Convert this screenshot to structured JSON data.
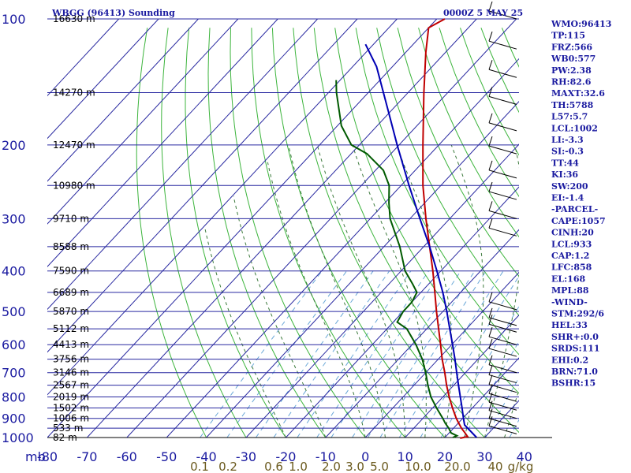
{
  "header": {
    "station": "WBGG (96413) Sounding",
    "time": "0000Z  5 MAY 25"
  },
  "chart_data": {
    "type": "skew-t log-p sounding",
    "x_axis_unit": "mb",
    "x_ticks": [
      "-80",
      "-70",
      "-60",
      "-50",
      "-40",
      "-30",
      "-20",
      "-10",
      "0",
      "10",
      "20",
      "30",
      "40"
    ],
    "y_ticks": [
      "100",
      "200",
      "300",
      "400",
      "500",
      "600",
      "700",
      "800",
      "900",
      "1000"
    ],
    "height_labels": [
      {
        "p": 100,
        "text": "16630 m"
      },
      {
        "p": 150,
        "text": "14270 m"
      },
      {
        "p": 200,
        "text": "12470 m"
      },
      {
        "p": 250,
        "text": "10980 m"
      },
      {
        "p": 300,
        "text": "9710 m"
      },
      {
        "p": 350,
        "text": "8588 m"
      },
      {
        "p": 400,
        "text": "7590 m"
      },
      {
        "p": 450,
        "text": "6689 m"
      },
      {
        "p": 500,
        "text": "5870 m"
      },
      {
        "p": 550,
        "text": "5112 m"
      },
      {
        "p": 600,
        "text": "4413 m"
      },
      {
        "p": 650,
        "text": "3756 m"
      },
      {
        "p": 700,
        "text": "3146 m"
      },
      {
        "p": 750,
        "text": "2567 m"
      },
      {
        "p": 800,
        "text": "2019 m"
      },
      {
        "p": 850,
        "text": "1502 m"
      },
      {
        "p": 900,
        "text": "1006 m"
      },
      {
        "p": 950,
        "text": "533 m"
      },
      {
        "p": 1000,
        "text": "82 m"
      }
    ],
    "mixing_ratio_labels": [
      "0.1",
      "0.2",
      "0.6",
      "1.0",
      "2.0",
      "3.0",
      "5.0",
      "10.0",
      "20.0",
      "40",
      "g/kg"
    ],
    "series": [
      {
        "name": "temperature",
        "color": "#c00000",
        "points": [
          {
            "p": 1004,
            "t": 24.0
          },
          {
            "p": 995,
            "t": 25.5
          },
          {
            "p": 975,
            "t": 24.0
          },
          {
            "p": 950,
            "t": 22.0
          },
          {
            "p": 925,
            "t": 20.2
          },
          {
            "p": 900,
            "t": 18.4
          },
          {
            "p": 850,
            "t": 15.0
          },
          {
            "p": 800,
            "t": 11.6
          },
          {
            "p": 750,
            "t": 8.2
          },
          {
            "p": 700,
            "t": 4.8
          },
          {
            "p": 650,
            "t": 1.0
          },
          {
            "p": 600,
            "t": -2.8
          },
          {
            "p": 550,
            "t": -7.0
          },
          {
            "p": 500,
            "t": -11.6
          },
          {
            "p": 450,
            "t": -16.5
          },
          {
            "p": 400,
            "t": -22.0
          },
          {
            "p": 350,
            "t": -28.5
          },
          {
            "p": 300,
            "t": -36.0
          },
          {
            "p": 250,
            "t": -44.5
          },
          {
            "p": 200,
            "t": -54.0
          },
          {
            "p": 150,
            "t": -66.0
          },
          {
            "p": 120,
            "t": -75.0
          },
          {
            "p": 105,
            "t": -80.0
          },
          {
            "p": 100,
            "t": -78.0
          }
        ]
      },
      {
        "name": "dewpoint",
        "color": "#005a00",
        "points": [
          {
            "p": 1000,
            "t": 22.0
          },
          {
            "p": 990,
            "t": 22.6
          },
          {
            "p": 975,
            "t": 20.5
          },
          {
            "p": 950,
            "t": 18.8
          },
          {
            "p": 925,
            "t": 16.8
          },
          {
            "p": 900,
            "t": 15.0
          },
          {
            "p": 850,
            "t": 11.0
          },
          {
            "p": 800,
            "t": 7.0
          },
          {
            "p": 750,
            "t": 3.5
          },
          {
            "p": 700,
            "t": 0.0
          },
          {
            "p": 650,
            "t": -4.0
          },
          {
            "p": 600,
            "t": -9.0
          },
          {
            "p": 550,
            "t": -15.0
          },
          {
            "p": 530,
            "t": -19.0
          },
          {
            "p": 500,
            "t": -20.0
          },
          {
            "p": 475,
            "t": -20.0
          },
          {
            "p": 450,
            "t": -21.0
          },
          {
            "p": 430,
            "t": -24.0
          },
          {
            "p": 400,
            "t": -29.0
          },
          {
            "p": 350,
            "t": -36.0
          },
          {
            "p": 300,
            "t": -45.0
          },
          {
            "p": 275,
            "t": -49.0
          },
          {
            "p": 250,
            "t": -53.0
          },
          {
            "p": 230,
            "t": -58.0
          },
          {
            "p": 210,
            "t": -66.0
          },
          {
            "p": 200,
            "t": -72.0
          },
          {
            "p": 180,
            "t": -79.0
          },
          {
            "p": 150,
            "t": -88.0
          },
          {
            "p": 140,
            "t": -91.0
          }
        ]
      },
      {
        "name": "parcel",
        "color": "#0000b4",
        "points": [
          {
            "p": 1000,
            "t": 28.0
          },
          {
            "p": 933,
            "t": 22.0
          },
          {
            "p": 900,
            "t": 20.2
          },
          {
            "p": 850,
            "t": 17.4
          },
          {
            "p": 800,
            "t": 14.4
          },
          {
            "p": 750,
            "t": 11.2
          },
          {
            "p": 700,
            "t": 7.8
          },
          {
            "p": 650,
            "t": 4.2
          },
          {
            "p": 600,
            "t": 0.2
          },
          {
            "p": 550,
            "t": -4.2
          },
          {
            "p": 500,
            "t": -9.0
          },
          {
            "p": 450,
            "t": -14.5
          },
          {
            "p": 400,
            "t": -21.0
          },
          {
            "p": 350,
            "t": -28.5
          },
          {
            "p": 300,
            "t": -37.5
          },
          {
            "p": 250,
            "t": -48.0
          },
          {
            "p": 200,
            "t": -60.5
          },
          {
            "p": 168,
            "t": -70.0
          },
          {
            "p": 130,
            "t": -84.0
          },
          {
            "p": 115,
            "t": -92.0
          }
        ]
      }
    ],
    "wind_barbs": [
      {
        "p": 100
      },
      {
        "p": 118
      },
      {
        "p": 138
      },
      {
        "p": 160
      },
      {
        "p": 185
      },
      {
        "p": 210
      },
      {
        "p": 240
      },
      {
        "p": 270
      },
      {
        "p": 300
      },
      {
        "p": 330
      },
      {
        "p": 495
      },
      {
        "p": 540
      },
      {
        "p": 560
      },
      {
        "p": 600
      },
      {
        "p": 640
      },
      {
        "p": 700
      },
      {
        "p": 740
      },
      {
        "p": 780
      },
      {
        "p": 820
      },
      {
        "p": 860
      },
      {
        "p": 900
      },
      {
        "p": 940
      },
      {
        "p": 980
      }
    ]
  },
  "indices": [
    "WMO:96413",
    "TP:115",
    "FRZ:566",
    "WB0:577",
    "PW:2.38",
    "RH:82.6",
    "MAXT:32.6",
    "TH:5788",
    "L57:5.7",
    "LCL:1002",
    "LI:-3.3",
    "SI:-0.3",
    "TT:44",
    "KI:36",
    "SW:200",
    "EI:-1.4",
    "-PARCEL-",
    "CAPE:1057",
    "CINH:20",
    "LCL:933",
    "CAP:1.2",
    "LFC:858",
    "EL:168",
    "MPL:88",
    "-WIND-",
    "STM:292/6",
    "HEL:33",
    "SHR+:0.0",
    "SRDS:111",
    "EHI:0.2",
    "BRN:71.0",
    "BSHR:15"
  ],
  "colors": {
    "isobar": "#2828a0",
    "isotherm": "#2828a0",
    "dry_adiabat": "#3cb43c",
    "moist_adiabat": "#3c7a3c",
    "mixing_ratio": "#6aa8d8",
    "index_text": "#1a1aa0"
  }
}
